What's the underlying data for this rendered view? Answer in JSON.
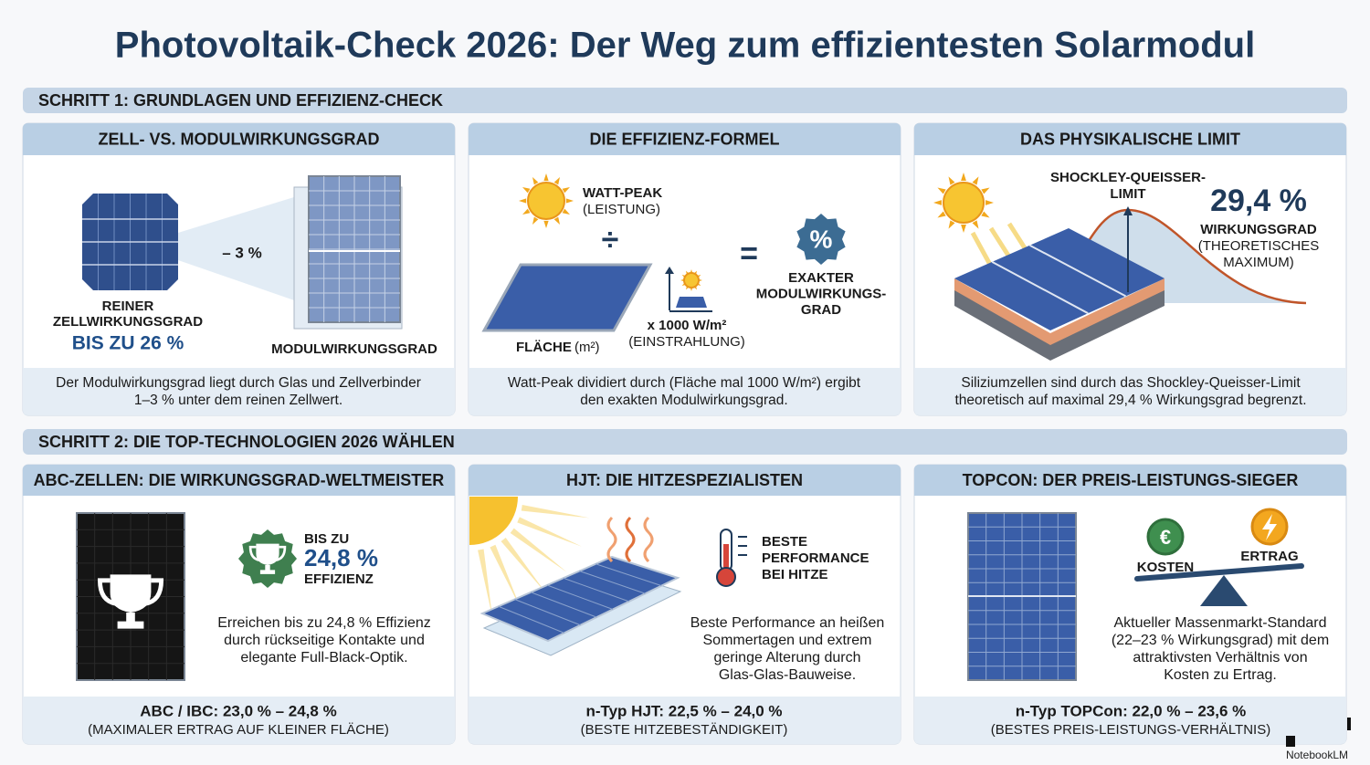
{
  "title": "Photovoltaik-Check 2026: Der Weg zum effizientesten Solarmodul",
  "step1": {
    "heading": "SCHRITT 1: GRUNDLAGEN UND EFFIZIENZ-CHECK",
    "panels": [
      {
        "heading": "ZELL- VS. MODULWIRKUNGSGRAD",
        "loss": "– 3 %",
        "cell_label": [
          "REINER",
          "ZELLWIRKUNGSGRAD"
        ],
        "cell_value": "BIS ZU 26 %",
        "module_label": "MODULWIRKUNGSGRAD",
        "caption": [
          "Der Modulwirkungsgrad liegt durch Glas und Zellverbinder",
          "1–3 % unter dem reinen Zellwert."
        ]
      },
      {
        "heading": "DIE EFFIZIENZ-FORMEL",
        "numerator": [
          "WATT-PEAK",
          "(LEISTUNG)"
        ],
        "divide": "÷",
        "area": "FLÄCHE",
        "area_unit": "(m²)",
        "irradiance": [
          "x 1000 W/m²",
          "(EINSTRAHLUNG)"
        ],
        "equals": "=",
        "badge": "%",
        "result": [
          "EXAKTER",
          "MODULWIRKUNGS-",
          "GRAD"
        ],
        "caption": [
          "Watt-Peak dividiert durch (Fläche mal 1000 W/m²) ergibt",
          "den exakten Modulwirkungsgrad."
        ]
      },
      {
        "heading": "DAS PHYSIKALISCHE LIMIT",
        "limit_label": [
          "SHOCKLEY-QUEISSER-",
          "LIMIT"
        ],
        "value": "29,4 %",
        "value_label": [
          "WIRKUNGSGRAD",
          "(THEORETISCHES",
          "MAXIMUM)"
        ],
        "caption": [
          "Siliziumzellen sind durch das Shockley-Queisser-Limit",
          "theoretisch auf maximal 29,4 % Wirkungsgrad begrenzt."
        ]
      }
    ]
  },
  "step2": {
    "heading": "SCHRITT 2: DIE TOP-TECHNOLOGIEN 2026 WÄHLEN",
    "panels": [
      {
        "heading": "ABC-ZELLEN: DIE WIRKUNGSGRAD-WELTMEISTER",
        "badge": [
          "BIS ZU",
          "24,8 %",
          "EFFIZIENZ"
        ],
        "description": [
          "Erreichen bis zu 24,8 % Effizienz",
          "durch rückseitige Kontakte und",
          "elegante Full-Black-Optik."
        ],
        "footer": [
          "ABC / IBC: 23,0 % – 24,8 %",
          "(MAXIMALER ERTRAG AUF KLEINER FLÄCHE)"
        ]
      },
      {
        "heading": "HJT: DIE HITZESPEZIALISTEN",
        "badge": [
          "BESTE",
          "PERFORMANCE",
          "BEI HITZE"
        ],
        "description": [
          "Beste Performance an heißen",
          "Sommertagen und extrem",
          "geringe Alterung durch",
          "Glas-Glas-Bauweise."
        ],
        "footer": [
          "n-Typ HJT: 22,5 % – 24,0 %",
          "(BESTE HITZEBESTÄNDIGKEIT)"
        ]
      },
      {
        "heading": "TOPCON: DER PREIS-LEISTUNGS-SIEGER",
        "cost_icon": "€",
        "cost": "KOSTEN",
        "yield": "ERTRAG",
        "description": [
          "Aktueller Massenmarkt-Standard",
          "(22–23 % Wirkungsgrad) mit dem",
          "attraktivsten Verhältnis von",
          "Kosten zu Ertrag."
        ],
        "footer": [
          "n-Typ TOPCon: 22,0 % – 23,6 %",
          "(BESTES PREIS-LEISTUNGS-VERHÄLTNIS)"
        ]
      }
    ]
  },
  "watermark": "NotebookLM"
}
